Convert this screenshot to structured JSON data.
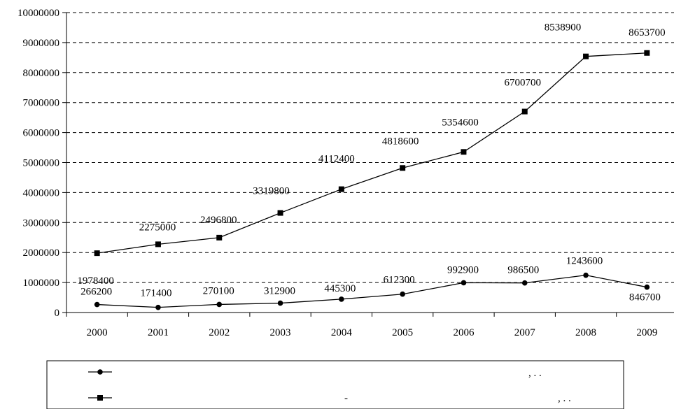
{
  "chart_data": {
    "type": "line",
    "title": "",
    "xlabel": "",
    "ylabel": "",
    "ylim": [
      0,
      10000000
    ],
    "yticks": [
      0,
      1000000,
      2000000,
      3000000,
      4000000,
      5000000,
      6000000,
      7000000,
      8000000,
      9000000,
      10000000
    ],
    "yticklabels": [
      "0",
      "1000000",
      "2000000",
      "3000000",
      "4000000",
      "5000000",
      "6000000",
      "7000000",
      "8000000",
      "9000000",
      "10000000"
    ],
    "categories": [
      "2000",
      "2001",
      "2002",
      "2003",
      "2004",
      "2005",
      "2006",
      "2007",
      "2008",
      "2009"
    ],
    "grid": true,
    "legend_position": "bottom",
    "series": [
      {
        "marker": "circle",
        "values": [
          266200,
          171400,
          270100,
          312900,
          445300,
          612300,
          992900,
          986500,
          1243600,
          846700
        ],
        "value_labels": [
          "266200",
          "171400",
          "270100",
          "312900",
          "445300",
          "612300",
          "992900",
          "986500",
          "1243600",
          "846700"
        ],
        "legend_text": ",   .   ."
      },
      {
        "marker": "square",
        "values": [
          1978400,
          2275000,
          2496800,
          3319800,
          4112400,
          4818600,
          5354600,
          6700700,
          8538900,
          8653700
        ],
        "value_labels": [
          "1978400",
          "2275000",
          "2496800",
          "3319800",
          "4112400",
          "4818600",
          "5354600",
          "6700700",
          "8538900",
          "8653700"
        ],
        "legend_text": "-",
        "legend_text_2": ",   .   ."
      }
    ]
  }
}
